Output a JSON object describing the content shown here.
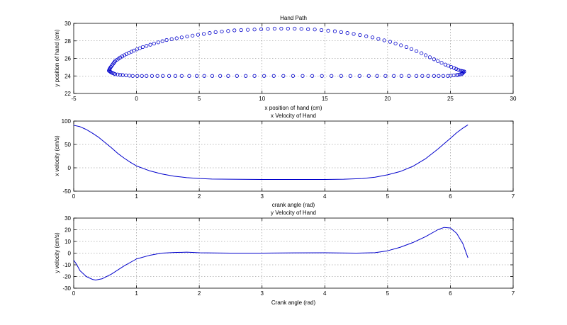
{
  "chart_data": [
    {
      "type": "scatter",
      "title": "Hand Path",
      "xlabel": "x position of hand (cm)",
      "ylabel": "y position of hand (cm)",
      "xlim": [
        -5,
        30
      ],
      "ylim": [
        22,
        30
      ],
      "xticks": [
        -5,
        0,
        5,
        10,
        15,
        20,
        25,
        30
      ],
      "yticks": [
        22,
        24,
        26,
        28,
        30
      ],
      "grid": true,
      "marker": "circle",
      "color": "#0000cc",
      "series": [
        {
          "x": [
            26.1,
            25.9,
            25.5,
            24.8,
            23.7,
            22.3,
            20.5,
            18.5,
            16.3,
            14.0,
            11.7,
            9.4,
            7.3,
            5.4,
            3.6,
            2.1,
            0.8,
            -0.3,
            -1.1,
            -1.7,
            -2.0,
            -2.2,
            -2.1,
            -1.9,
            -1.7,
            -1.3,
            -0.8,
            -0.2,
            0.5,
            1.4,
            2.4,
            3.6,
            4.9,
            6.3,
            7.8,
            9.4,
            11.0,
            12.6,
            14.2,
            15.8,
            17.3,
            18.8,
            20.2,
            21.5,
            22.7,
            23.7,
            24.6,
            25.3,
            25.8,
            26.1
          ],
          "y": [
            24.5,
            24.2,
            24.1,
            24.0,
            24.0,
            24.0,
            24.0,
            24.0,
            24.0,
            24.0,
            24.0,
            24.0,
            24.0,
            24.0,
            24.0,
            24.0,
            24.0,
            24.0,
            24.1,
            24.2,
            24.4,
            24.6,
            24.9,
            25.3,
            25.7,
            26.1,
            26.5,
            26.9,
            27.3,
            27.7,
            28.1,
            28.4,
            28.7,
            29.0,
            29.2,
            29.3,
            29.4,
            29.4,
            29.3,
            29.1,
            28.8,
            28.4,
            27.9,
            27.3,
            26.6,
            25.9,
            25.3,
            24.9,
            24.6,
            24.5
          ]
        }
      ]
    },
    {
      "type": "line",
      "title": "x Velocity of Hand",
      "xlabel": "crank angle (rad)",
      "ylabel": "x velocity (cm/s)",
      "xlim": [
        0,
        7
      ],
      "ylim": [
        -50,
        100
      ],
      "xticks": [
        0,
        1,
        2,
        3,
        4,
        5,
        6,
        7
      ],
      "yticks": [
        -50,
        0,
        50,
        100
      ],
      "grid": true,
      "color": "#0000cc",
      "series": [
        {
          "x": [
            0,
            0.1,
            0.2,
            0.3,
            0.4,
            0.5,
            0.6,
            0.7,
            0.8,
            0.9,
            1.0,
            1.2,
            1.4,
            1.6,
            1.8,
            2.0,
            2.2,
            2.5,
            3.0,
            3.5,
            4.0,
            4.3,
            4.6,
            4.8,
            5.0,
            5.2,
            5.4,
            5.6,
            5.8,
            6.0,
            6.1,
            6.2,
            6.28
          ],
          "y": [
            91,
            88,
            82,
            74,
            65,
            54,
            43,
            31,
            21,
            12,
            4,
            -6,
            -13,
            -18,
            -21,
            -23,
            -24,
            -24.5,
            -25,
            -25,
            -25,
            -24.5,
            -23,
            -20,
            -15,
            -8,
            3,
            19,
            40,
            63,
            75,
            85,
            92
          ]
        }
      ]
    },
    {
      "type": "line",
      "title": "y Velocity of Hand",
      "xlabel": "Crank angle (rad)",
      "ylabel": "y velocity (cm/s)",
      "xlim": [
        0,
        7
      ],
      "ylim": [
        -30,
        30
      ],
      "xticks": [
        0,
        1,
        2,
        3,
        4,
        5,
        6,
        7
      ],
      "yticks": [
        -30,
        -20,
        -10,
        0,
        10,
        20,
        30
      ],
      "grid": true,
      "color": "#0000cc",
      "series": [
        {
          "x": [
            0,
            0.05,
            0.1,
            0.2,
            0.3,
            0.35,
            0.45,
            0.6,
            0.8,
            1.0,
            1.2,
            1.4,
            1.6,
            1.8,
            2.0,
            2.5,
            3.0,
            3.5,
            4.0,
            4.5,
            4.8,
            5.0,
            5.2,
            5.4,
            5.6,
            5.8,
            5.9,
            6.0,
            6.1,
            6.2,
            6.28
          ],
          "y": [
            -6,
            -10,
            -15,
            -20,
            -22.5,
            -23,
            -22,
            -18,
            -11,
            -5,
            -2,
            0,
            0.5,
            0.8,
            0.3,
            0,
            0,
            0.2,
            0.3,
            0,
            0.4,
            2,
            5,
            9,
            14,
            20,
            22,
            21.5,
            17,
            8,
            -4
          ]
        }
      ]
    }
  ]
}
